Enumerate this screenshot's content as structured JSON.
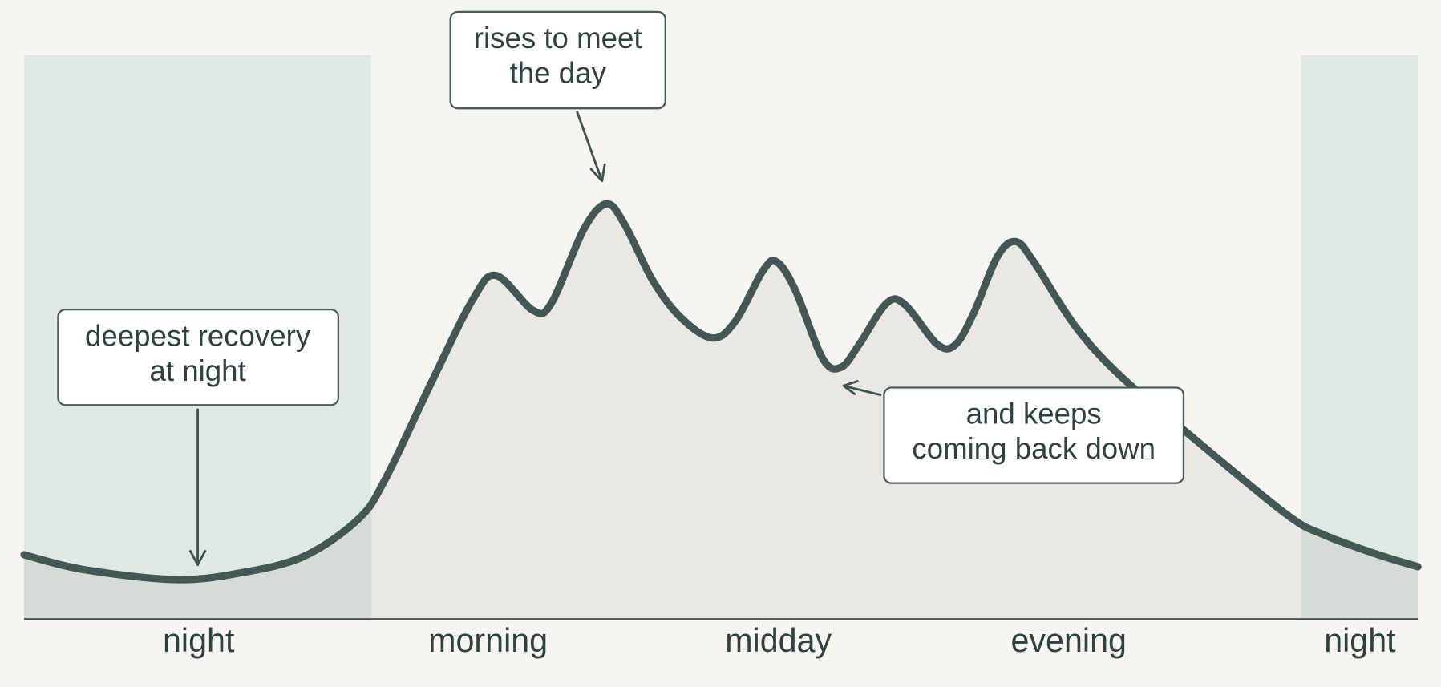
{
  "labels": [
    "night",
    "morning",
    "midday",
    "evening",
    "night"
  ],
  "annotations": [
    {
      "lines": [
        "rises to meet",
        "the day"
      ]
    },
    {
      "lines": [
        "deepest recovery",
        "at night"
      ]
    },
    {
      "lines": [
        "and keeps",
        "coming back down"
      ]
    }
  ]
}
